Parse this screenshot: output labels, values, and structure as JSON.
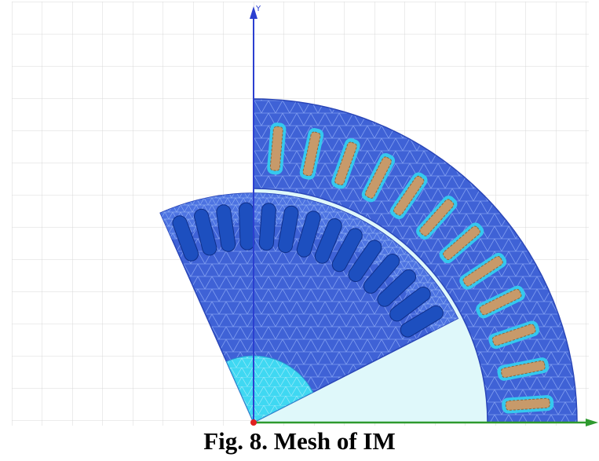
{
  "figure": {
    "axis_label": "Y",
    "caption": "Fig. 8. Mesh of IM"
  }
}
